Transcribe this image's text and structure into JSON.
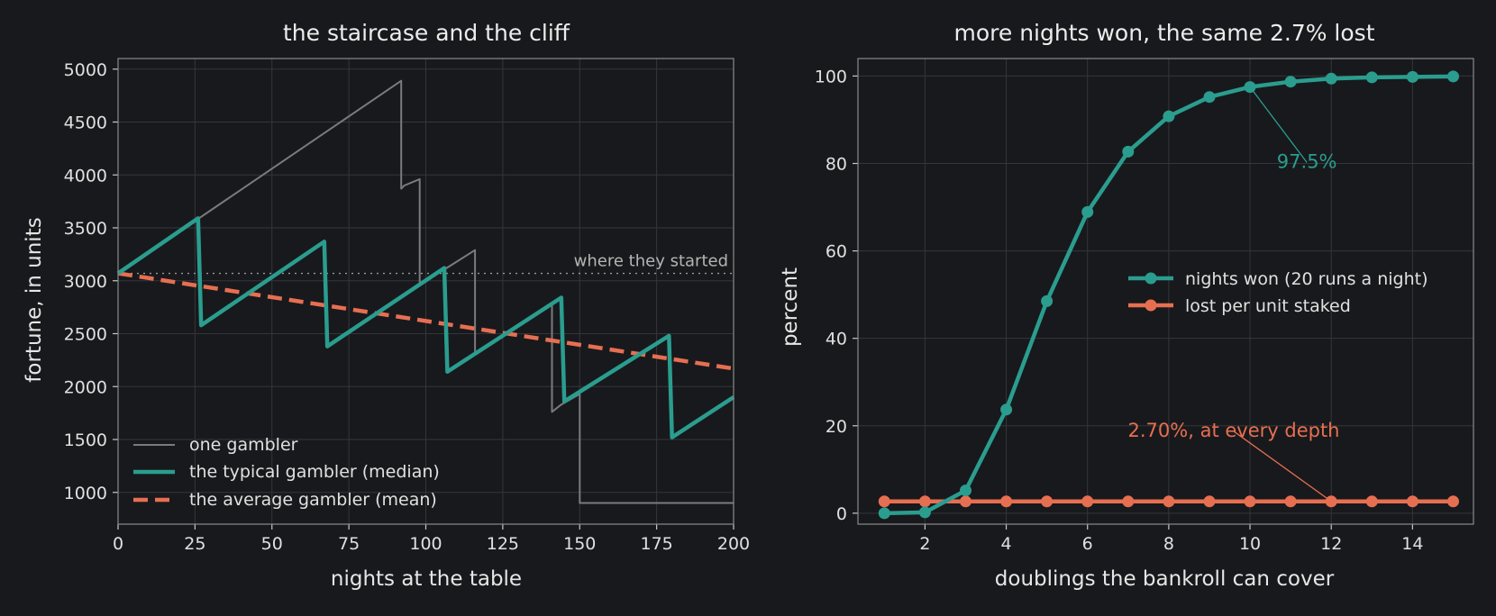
{
  "chart_data": [
    {
      "type": "line",
      "title": "the staircase and the cliff",
      "xlabel": "nights at the table",
      "ylabel": "fortune, in units",
      "xlim": [
        0,
        200
      ],
      "ylim": [
        700,
        5100
      ],
      "xticks": [
        0,
        25,
        50,
        75,
        100,
        125,
        150,
        175,
        200
      ],
      "yticks": [
        1000,
        1500,
        2000,
        2500,
        3000,
        3500,
        4000,
        4500,
        5000
      ],
      "grid": true,
      "legend_position": "lower-left",
      "reference_line": {
        "y": 3070,
        "label": "where they started"
      },
      "series": [
        {
          "name": "one gambler",
          "color": "#7b7b7d",
          "style": "thin-step",
          "x": [
            0,
            92,
            92,
            93,
            98,
            98,
            110,
            116,
            116,
            141,
            141,
            144,
            150,
            150,
            200
          ],
          "y": [
            3070,
            4890,
            3870,
            3900,
            3960,
            2960,
            3180,
            3290,
            2300,
            2780,
            1760,
            1830,
            1930,
            900,
            900
          ]
        },
        {
          "name": "the typical gambler (median)",
          "color": "#2a9d8f",
          "style": "thick-solid",
          "x": [
            0,
            26,
            27,
            67,
            68,
            106,
            107,
            144,
            145,
            179,
            180,
            200
          ],
          "y": [
            3070,
            3590,
            2580,
            3370,
            2380,
            3120,
            2140,
            2840,
            1860,
            2480,
            1520,
            1900
          ]
        },
        {
          "name": "the average gambler (mean)",
          "color": "#e76f51",
          "style": "thick-dashed",
          "x": [
            0,
            200
          ],
          "y": [
            3070,
            2170
          ]
        }
      ]
    },
    {
      "type": "line",
      "title": "more nights won, the same 2.7% lost",
      "xlabel": "doublings the bankroll can cover",
      "ylabel": "percent",
      "xlim": [
        0.35,
        15.5
      ],
      "ylim": [
        -2.5,
        104
      ],
      "xticks": [
        2,
        4,
        6,
        8,
        10,
        12,
        14
      ],
      "yticks": [
        0,
        20,
        40,
        60,
        80,
        100
      ],
      "grid": true,
      "legend_position": "center-right",
      "x": [
        1,
        2,
        3,
        4,
        5,
        6,
        7,
        8,
        9,
        10,
        11,
        12,
        13,
        14,
        15
      ],
      "series": [
        {
          "name": "nights won (20 runs a night)",
          "color": "#2a9d8f",
          "values": [
            0.0,
            0.2,
            5.2,
            23.7,
            48.5,
            68.9,
            82.7,
            90.8,
            95.2,
            97.5,
            98.7,
            99.4,
            99.7,
            99.8,
            99.9
          ]
        },
        {
          "name": "lost per unit staked",
          "color": "#e76f51",
          "values": [
            2.7,
            2.7,
            2.7,
            2.7,
            2.7,
            2.7,
            2.7,
            2.7,
            2.7,
            2.7,
            2.7,
            2.7,
            2.7,
            2.7,
            2.7
          ]
        }
      ],
      "annotations": [
        {
          "text": "97.5%",
          "x": 10,
          "y": 97.5,
          "text_x": 11.4,
          "text_y": 79,
          "color": "#2a9d8f"
        },
        {
          "text": "2.70%, at every depth",
          "x": 12,
          "y": 2.7,
          "text_x": 9.6,
          "text_y": 17.5,
          "color": "#e76f51"
        }
      ]
    }
  ]
}
